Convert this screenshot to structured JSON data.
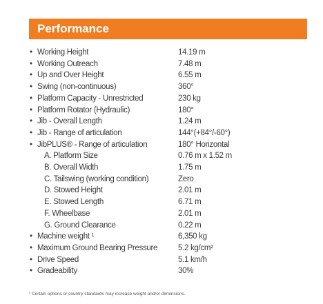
{
  "section": {
    "title": "Performance"
  },
  "rows": [
    {
      "label": "Working Height",
      "value": "14.19 m"
    },
    {
      "label": "Working Outreach",
      "value": "7.48 m"
    },
    {
      "label": "Up and Over Height",
      "value": "6.55 m"
    },
    {
      "label": "Swing (non-continuous)",
      "value": "360°"
    },
    {
      "label": "Platform Capacity - Unrestricted",
      "value": "230 kg"
    },
    {
      "label": "Platform Rotator (Hydraulic)",
      "value": "180°"
    },
    {
      "label": "Jib - Overall Length",
      "value": "1.24 m"
    },
    {
      "label": "Jib - Range of articulation",
      "value": "144°(+84°/-60°)"
    },
    {
      "label": "JibPLUS® - Range of articulation",
      "value": "180° Horizontal",
      "items": [
        {
          "label": "A. Platform Size",
          "value": "0.76 m x 1.52 m"
        },
        {
          "label": "B. Overall Width",
          "value": "1.75 m"
        },
        {
          "label": "C. Tailswing (working condition)",
          "value": "Zero"
        },
        {
          "label": "D. Stowed Height",
          "value": "2.01 m"
        },
        {
          "label": "E. Stowed Length",
          "value": "6.71 m"
        },
        {
          "label": "F. Wheelbase",
          "value": "2.01 m"
        },
        {
          "label": "G. Ground Clearance",
          "value": "0.22 m"
        }
      ]
    },
    {
      "label": "Machine weight ¹",
      "value": "6,350 kg"
    },
    {
      "label": "Maximum Ground Bearing Pressure",
      "value": "5.2 kg/cm²"
    },
    {
      "label": "Drive Speed",
      "value": "5.1 km/h"
    },
    {
      "label": "Gradeability",
      "value": "30%"
    }
  ],
  "footnote": "¹ Certain options or country standards may increase weight and/or dimensions."
}
